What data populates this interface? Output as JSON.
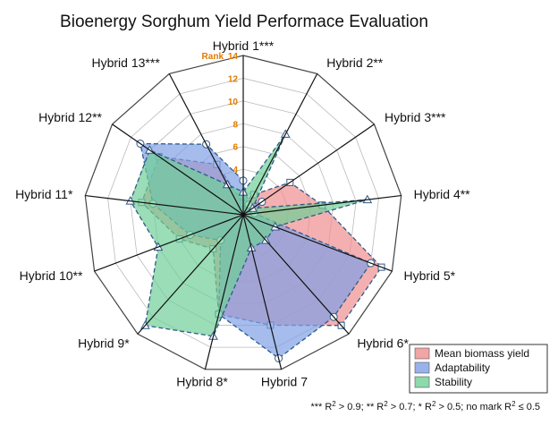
{
  "chart_data": {
    "type": "radar",
    "title": "Bioenergy Sorghum Yield Performace Evaluation",
    "axis_title": "Rank",
    "r_ticks": [
      4,
      6,
      8,
      10,
      12,
      14
    ],
    "r_range": [
      0,
      14
    ],
    "categories": [
      "Hybrid 1***",
      "Hybrid 2**",
      "Hybrid 3***",
      "Hybrid 4**",
      "Hybrid 5*",
      "Hybrid 6*",
      "Hybrid 7",
      "Hybrid 8*",
      "Hybrid 9*",
      "Hybrid 10**",
      "Hybrid 11*",
      "Hybrid 12**",
      "Hybrid 13***"
    ],
    "series": [
      {
        "name": "Mean biomass yield",
        "color": "#ef8e8e",
        "values": [
          1,
          2,
          5,
          7,
          13,
          13,
          10,
          9,
          4,
          6,
          9,
          9,
          5
        ]
      },
      {
        "name": "Adaptability",
        "color": "#7f9fe6",
        "values": [
          3,
          1,
          2,
          1,
          12,
          12,
          13,
          9,
          3,
          5,
          8,
          11,
          7
        ]
      },
      {
        "name": "Stability",
        "color": "#6fcf97",
        "values": [
          2,
          8,
          1,
          11,
          3,
          3,
          3,
          11,
          13,
          8,
          10,
          10,
          3
        ]
      }
    ],
    "legend_position": "bottom-right",
    "grid": true
  },
  "footnote": {
    "p1": "*** R",
    "e1": "2",
    "p2": " > 0.9; ** R",
    "e2": "2",
    "p3": " > 0.7; * R",
    "e3": "2",
    "p4": " > 0.5; no mark R",
    "e4": "2",
    "p5": " ≤ 0.5"
  }
}
